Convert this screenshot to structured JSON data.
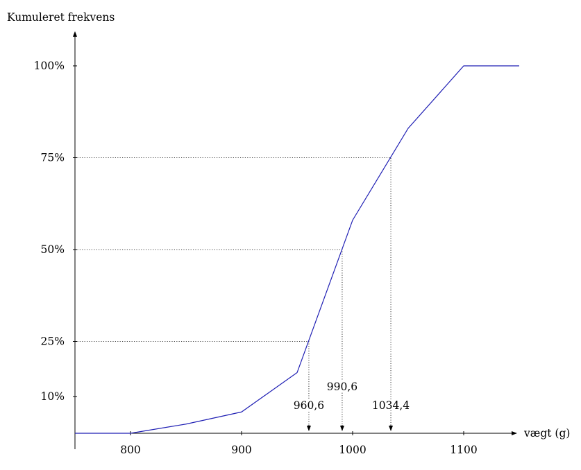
{
  "chart_data": {
    "type": "line",
    "title": "",
    "xlabel": "vægt (g)",
    "ylabel": "Kumuleret frekvens",
    "xlim": [
      750,
      1150
    ],
    "ylim": [
      0,
      1.0
    ],
    "grid": false,
    "x_ticks": [
      800,
      900,
      1000,
      1100
    ],
    "x_tick_labels": [
      "800",
      "900",
      "1000",
      "1100"
    ],
    "y_ticks": [
      0.1,
      0.25,
      0.5,
      0.75,
      1.0
    ],
    "y_tick_labels": [
      "10%",
      "25%",
      "50%",
      "75%",
      "100%"
    ],
    "series": [
      {
        "x": [
          750,
          800,
          850,
          900,
          950,
          1000,
          1050,
          1100,
          1150
        ],
        "y": [
          0,
          0,
          0.025,
          0.058,
          0.165,
          0.58,
          0.83,
          1.0,
          1.0
        ]
      }
    ],
    "quartile_markers": [
      {
        "y": 0.25,
        "x": 960.6,
        "label": "960,6"
      },
      {
        "y": 0.5,
        "x": 990.6,
        "label": "990,6"
      },
      {
        "y": 0.75,
        "x": 1034.4,
        "label": "1034,4"
      }
    ],
    "colors": {
      "line": "#1f1fb4",
      "axis": "#000000"
    }
  }
}
